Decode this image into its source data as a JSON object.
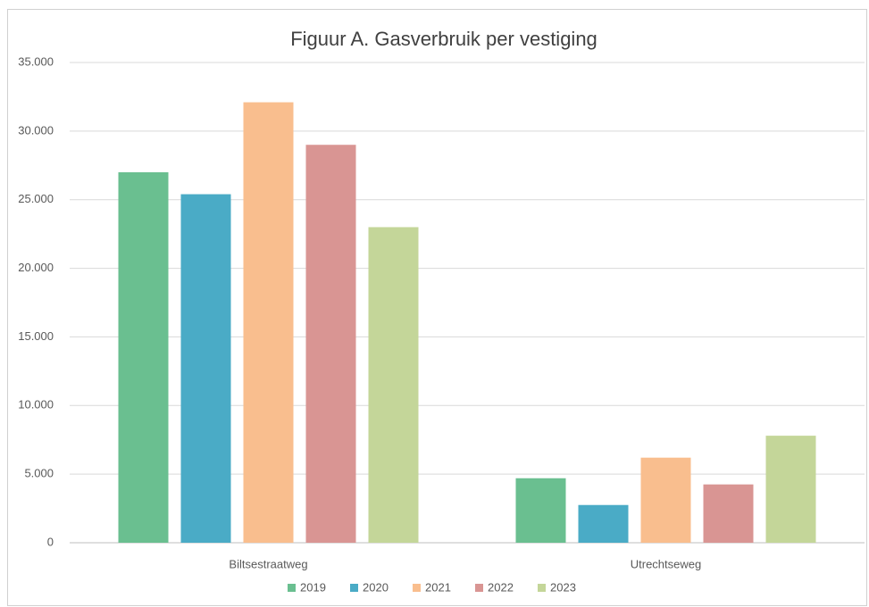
{
  "chart_data": {
    "type": "bar",
    "title": "Figuur A. Gasverbruik per vestiging",
    "categories": [
      "Biltsestraatweg",
      "Utrechtseweg"
    ],
    "series": [
      {
        "name": "2019",
        "color": "#6abf90",
        "values": [
          27000,
          4700
        ]
      },
      {
        "name": "2020",
        "color": "#4aabc6",
        "values": [
          25400,
          2750
        ]
      },
      {
        "name": "2021",
        "color": "#f9be8e",
        "values": [
          32100,
          6200
        ]
      },
      {
        "name": "2022",
        "color": "#d99593",
        "values": [
          29000,
          4250
        ]
      },
      {
        "name": "2023",
        "color": "#c4d699",
        "values": [
          23000,
          7800
        ]
      }
    ],
    "ylim": [
      0,
      35000
    ],
    "yticks": [
      0,
      {
        "value": 5000,
        "label": "5.000"
      },
      {
        "value": 10000,
        "label": "10.000"
      },
      {
        "value": 15000,
        "label": "15.000"
      },
      {
        "value": 20000,
        "label": "20.000"
      },
      {
        "value": 25000,
        "label": "25.000"
      },
      {
        "value": 30000,
        "label": "30.000"
      },
      {
        "value": 35000,
        "label": "35.000"
      }
    ],
    "grid": true,
    "legend": "bottom"
  }
}
